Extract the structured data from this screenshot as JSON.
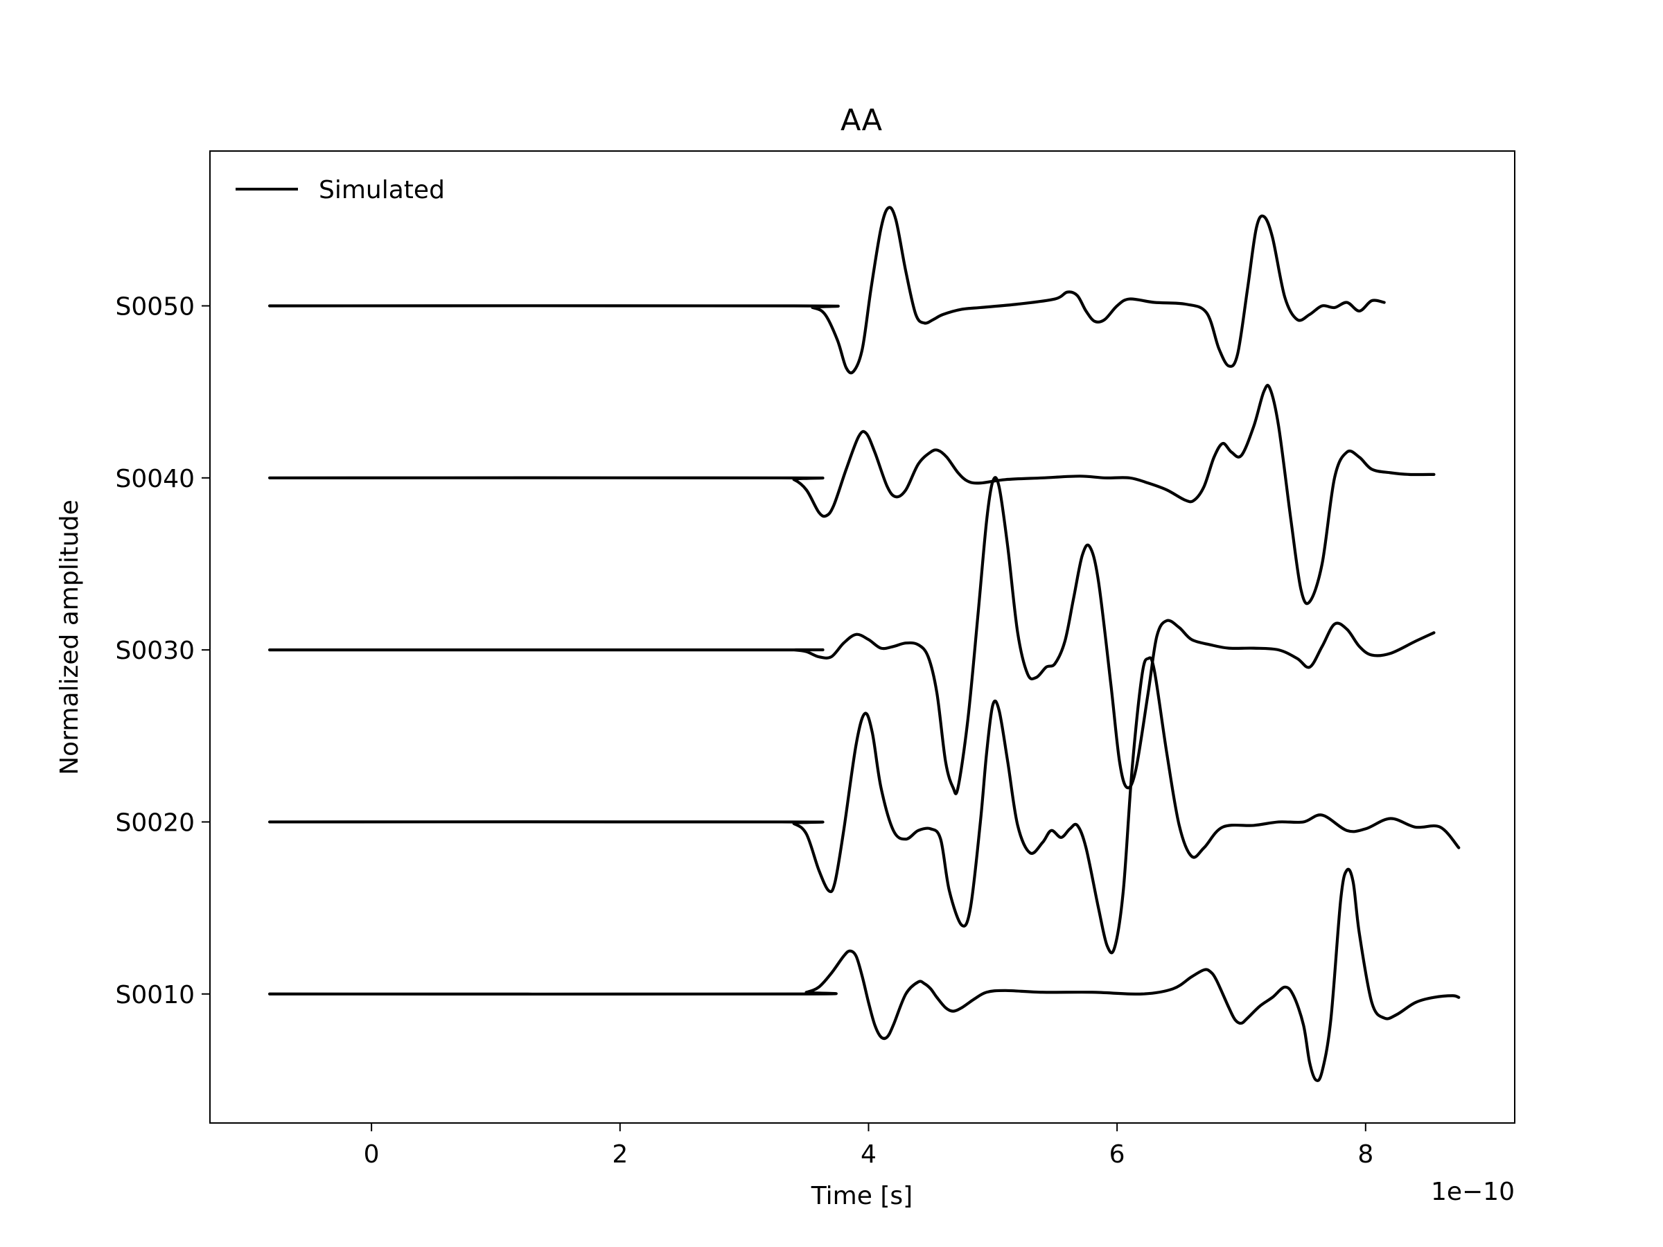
{
  "chart_data": {
    "type": "line",
    "title": "AA",
    "xlabel": "Time [s]",
    "ylabel": "Normalized amplitude",
    "x_offset_label": "1e−10",
    "x_scale": 1e-10,
    "xlim": [
      -1.3,
      9.2
    ],
    "ylim": [
      0.25,
      5.9
    ],
    "x_ticks": [
      0,
      2,
      4,
      6,
      8
    ],
    "x_tick_labels": [
      "0",
      "2",
      "4",
      "6",
      "8"
    ],
    "y_ticks": [
      1,
      2,
      3,
      4,
      5
    ],
    "y_tick_labels": [
      "S0010",
      "S0020",
      "S0030",
      "S0040",
      "S0050"
    ],
    "legend": {
      "position": "upper-left",
      "entries": [
        "Simulated"
      ]
    },
    "line_color": "#000000",
    "grid": false,
    "series": [
      {
        "trace": "S0010",
        "baseline": 1,
        "points": [
          [
            -0.82,
            1.0
          ],
          [
            3.4,
            1.0
          ],
          [
            3.5,
            1.01
          ],
          [
            3.6,
            1.04
          ],
          [
            3.7,
            1.12
          ],
          [
            3.8,
            1.22
          ],
          [
            3.85,
            1.25
          ],
          [
            3.9,
            1.22
          ],
          [
            3.95,
            1.1
          ],
          [
            4.0,
            0.95
          ],
          [
            4.05,
            0.82
          ],
          [
            4.1,
            0.75
          ],
          [
            4.15,
            0.75
          ],
          [
            4.2,
            0.82
          ],
          [
            4.3,
            1.0
          ],
          [
            4.4,
            1.07
          ],
          [
            4.45,
            1.06
          ],
          [
            4.5,
            1.03
          ],
          [
            4.55,
            0.98
          ],
          [
            4.62,
            0.92
          ],
          [
            4.68,
            0.9
          ],
          [
            4.75,
            0.92
          ],
          [
            4.85,
            0.97
          ],
          [
            4.95,
            1.01
          ],
          [
            5.1,
            1.02
          ],
          [
            5.4,
            1.01
          ],
          [
            5.8,
            1.01
          ],
          [
            6.2,
            1.0
          ],
          [
            6.45,
            1.03
          ],
          [
            6.6,
            1.1
          ],
          [
            6.7,
            1.14
          ],
          [
            6.75,
            1.13
          ],
          [
            6.8,
            1.08
          ],
          [
            6.9,
            0.92
          ],
          [
            6.95,
            0.85
          ],
          [
            7.0,
            0.83
          ],
          [
            7.05,
            0.86
          ],
          [
            7.15,
            0.93
          ],
          [
            7.25,
            0.98
          ],
          [
            7.35,
            1.04
          ],
          [
            7.42,
            0.99
          ],
          [
            7.5,
            0.82
          ],
          [
            7.55,
            0.6
          ],
          [
            7.6,
            0.5
          ],
          [
            7.65,
            0.55
          ],
          [
            7.72,
            0.85
          ],
          [
            7.8,
            1.55
          ],
          [
            7.85,
            1.72
          ],
          [
            7.9,
            1.65
          ],
          [
            7.95,
            1.35
          ],
          [
            8.05,
            0.95
          ],
          [
            8.15,
            0.86
          ],
          [
            8.25,
            0.88
          ],
          [
            8.4,
            0.95
          ],
          [
            8.55,
            0.98
          ],
          [
            8.7,
            0.99
          ],
          [
            8.75,
            0.98
          ]
        ]
      },
      {
        "trace": "S0020",
        "baseline": 2,
        "points": [
          [
            -0.82,
            2.0
          ],
          [
            3.3,
            2.0
          ],
          [
            3.4,
            1.99
          ],
          [
            3.5,
            1.93
          ],
          [
            3.6,
            1.72
          ],
          [
            3.68,
            1.6
          ],
          [
            3.73,
            1.65
          ],
          [
            3.8,
            1.95
          ],
          [
            3.9,
            2.45
          ],
          [
            3.97,
            2.63
          ],
          [
            4.03,
            2.52
          ],
          [
            4.1,
            2.2
          ],
          [
            4.2,
            1.95
          ],
          [
            4.3,
            1.9
          ],
          [
            4.4,
            1.95
          ],
          [
            4.5,
            1.96
          ],
          [
            4.58,
            1.9
          ],
          [
            4.65,
            1.6
          ],
          [
            4.75,
            1.4
          ],
          [
            4.82,
            1.5
          ],
          [
            4.9,
            2.0
          ],
          [
            4.95,
            2.4
          ],
          [
            5.0,
            2.68
          ],
          [
            5.05,
            2.65
          ],
          [
            5.12,
            2.35
          ],
          [
            5.2,
            1.98
          ],
          [
            5.3,
            1.82
          ],
          [
            5.4,
            1.88
          ],
          [
            5.47,
            1.95
          ],
          [
            5.55,
            1.91
          ],
          [
            5.62,
            1.96
          ],
          [
            5.68,
            1.98
          ],
          [
            5.75,
            1.85
          ],
          [
            5.85,
            1.5
          ],
          [
            5.92,
            1.28
          ],
          [
            5.98,
            1.27
          ],
          [
            6.05,
            1.6
          ],
          [
            6.12,
            2.3
          ],
          [
            6.2,
            2.85
          ],
          [
            6.25,
            2.95
          ],
          [
            6.3,
            2.88
          ],
          [
            6.4,
            2.4
          ],
          [
            6.5,
            1.98
          ],
          [
            6.6,
            1.8
          ],
          [
            6.7,
            1.85
          ],
          [
            6.85,
            1.97
          ],
          [
            7.1,
            1.98
          ],
          [
            7.3,
            2.0
          ],
          [
            7.5,
            2.0
          ],
          [
            7.65,
            2.04
          ],
          [
            7.85,
            1.95
          ],
          [
            8.0,
            1.96
          ],
          [
            8.2,
            2.02
          ],
          [
            8.4,
            1.97
          ],
          [
            8.6,
            1.97
          ],
          [
            8.75,
            1.85
          ]
        ]
      },
      {
        "trace": "S0030",
        "baseline": 3,
        "points": [
          [
            -0.82,
            3.0
          ],
          [
            3.3,
            3.0
          ],
          [
            3.4,
            3.0
          ],
          [
            3.5,
            2.99
          ],
          [
            3.6,
            2.96
          ],
          [
            3.7,
            2.96
          ],
          [
            3.8,
            3.04
          ],
          [
            3.9,
            3.09
          ],
          [
            4.0,
            3.06
          ],
          [
            4.1,
            3.01
          ],
          [
            4.2,
            3.02
          ],
          [
            4.3,
            3.04
          ],
          [
            4.4,
            3.03
          ],
          [
            4.48,
            2.96
          ],
          [
            4.55,
            2.75
          ],
          [
            4.62,
            2.35
          ],
          [
            4.68,
            2.2
          ],
          [
            4.72,
            2.2
          ],
          [
            4.8,
            2.6
          ],
          [
            4.88,
            3.2
          ],
          [
            4.95,
            3.75
          ],
          [
            5.0,
            3.98
          ],
          [
            5.05,
            3.95
          ],
          [
            5.12,
            3.6
          ],
          [
            5.2,
            3.1
          ],
          [
            5.28,
            2.86
          ],
          [
            5.35,
            2.84
          ],
          [
            5.43,
            2.9
          ],
          [
            5.5,
            2.92
          ],
          [
            5.58,
            3.05
          ],
          [
            5.65,
            3.3
          ],
          [
            5.72,
            3.55
          ],
          [
            5.78,
            3.6
          ],
          [
            5.85,
            3.4
          ],
          [
            5.95,
            2.8
          ],
          [
            6.02,
            2.35
          ],
          [
            6.08,
            2.2
          ],
          [
            6.15,
            2.3
          ],
          [
            6.25,
            2.75
          ],
          [
            6.32,
            3.08
          ],
          [
            6.4,
            3.17
          ],
          [
            6.5,
            3.13
          ],
          [
            6.6,
            3.06
          ],
          [
            6.75,
            3.03
          ],
          [
            6.9,
            3.01
          ],
          [
            7.1,
            3.01
          ],
          [
            7.3,
            3.0
          ],
          [
            7.45,
            2.95
          ],
          [
            7.55,
            2.9
          ],
          [
            7.65,
            3.02
          ],
          [
            7.75,
            3.15
          ],
          [
            7.85,
            3.12
          ],
          [
            7.95,
            3.02
          ],
          [
            8.05,
            2.97
          ],
          [
            8.2,
            2.98
          ],
          [
            8.4,
            3.05
          ],
          [
            8.55,
            3.1
          ]
        ]
      },
      {
        "trace": "S0040",
        "baseline": 4,
        "points": [
          [
            -0.82,
            4.0
          ],
          [
            3.3,
            4.0
          ],
          [
            3.4,
            3.99
          ],
          [
            3.5,
            3.93
          ],
          [
            3.6,
            3.8
          ],
          [
            3.66,
            3.78
          ],
          [
            3.72,
            3.84
          ],
          [
            3.82,
            4.05
          ],
          [
            3.92,
            4.24
          ],
          [
            3.98,
            4.26
          ],
          [
            4.05,
            4.15
          ],
          [
            4.15,
            3.95
          ],
          [
            4.22,
            3.89
          ],
          [
            4.3,
            3.93
          ],
          [
            4.4,
            4.08
          ],
          [
            4.5,
            4.15
          ],
          [
            4.56,
            4.16
          ],
          [
            4.63,
            4.12
          ],
          [
            4.72,
            4.03
          ],
          [
            4.8,
            3.98
          ],
          [
            4.9,
            3.97
          ],
          [
            5.1,
            3.99
          ],
          [
            5.4,
            4.0
          ],
          [
            5.7,
            4.01
          ],
          [
            5.9,
            4.0
          ],
          [
            6.1,
            4.0
          ],
          [
            6.25,
            3.97
          ],
          [
            6.4,
            3.93
          ],
          [
            6.55,
            3.87
          ],
          [
            6.62,
            3.87
          ],
          [
            6.7,
            3.95
          ],
          [
            6.78,
            4.12
          ],
          [
            6.85,
            4.2
          ],
          [
            6.92,
            4.15
          ],
          [
            7.0,
            4.13
          ],
          [
            7.1,
            4.3
          ],
          [
            7.18,
            4.5
          ],
          [
            7.23,
            4.52
          ],
          [
            7.3,
            4.3
          ],
          [
            7.4,
            3.75
          ],
          [
            7.48,
            3.35
          ],
          [
            7.55,
            3.28
          ],
          [
            7.65,
            3.5
          ],
          [
            7.75,
            4.0
          ],
          [
            7.85,
            4.15
          ],
          [
            7.95,
            4.12
          ],
          [
            8.05,
            4.05
          ],
          [
            8.2,
            4.03
          ],
          [
            8.35,
            4.02
          ],
          [
            8.55,
            4.02
          ]
        ]
      },
      {
        "trace": "S0050",
        "baseline": 5,
        "points": [
          [
            -0.82,
            5.0
          ],
          [
            3.4,
            5.0
          ],
          [
            3.55,
            4.99
          ],
          [
            3.65,
            4.95
          ],
          [
            3.75,
            4.8
          ],
          [
            3.82,
            4.64
          ],
          [
            3.88,
            4.62
          ],
          [
            3.95,
            4.75
          ],
          [
            4.02,
            5.1
          ],
          [
            4.1,
            5.45
          ],
          [
            4.16,
            5.57
          ],
          [
            4.22,
            5.5
          ],
          [
            4.3,
            5.2
          ],
          [
            4.38,
            4.95
          ],
          [
            4.45,
            4.9
          ],
          [
            4.52,
            4.92
          ],
          [
            4.6,
            4.95
          ],
          [
            4.75,
            4.98
          ],
          [
            4.9,
            4.99
          ],
          [
            5.2,
            5.01
          ],
          [
            5.5,
            5.04
          ],
          [
            5.6,
            5.08
          ],
          [
            5.68,
            5.06
          ],
          [
            5.75,
            4.97
          ],
          [
            5.82,
            4.91
          ],
          [
            5.9,
            4.92
          ],
          [
            6.0,
            5.0
          ],
          [
            6.1,
            5.04
          ],
          [
            6.3,
            5.02
          ],
          [
            6.55,
            5.01
          ],
          [
            6.72,
            4.96
          ],
          [
            6.82,
            4.75
          ],
          [
            6.9,
            4.65
          ],
          [
            6.97,
            4.72
          ],
          [
            7.05,
            5.1
          ],
          [
            7.12,
            5.45
          ],
          [
            7.18,
            5.52
          ],
          [
            7.25,
            5.4
          ],
          [
            7.35,
            5.05
          ],
          [
            7.45,
            4.92
          ],
          [
            7.55,
            4.95
          ],
          [
            7.65,
            5.0
          ],
          [
            7.75,
            4.99
          ],
          [
            7.85,
            5.02
          ],
          [
            7.95,
            4.97
          ],
          [
            8.05,
            5.03
          ],
          [
            8.15,
            5.02
          ]
        ]
      }
    ]
  }
}
